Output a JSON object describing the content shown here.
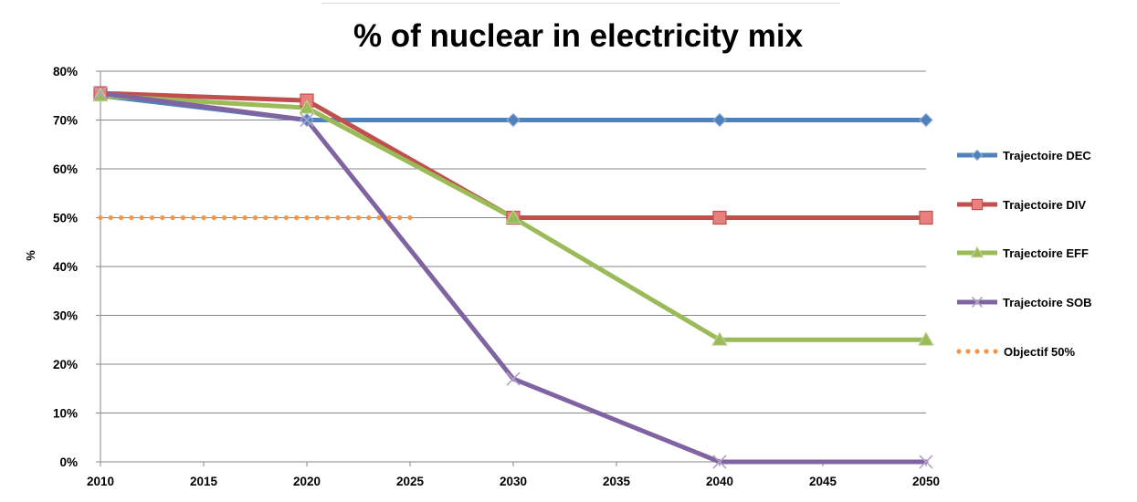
{
  "chart_data": {
    "type": "line",
    "title": "% of nuclear in electricity mix",
    "xlabel": "",
    "ylabel": "%",
    "xlim": [
      2010,
      2050
    ],
    "ylim": [
      0,
      80
    ],
    "x_ticks": [
      "2010",
      "2015",
      "2020",
      "2025",
      "2030",
      "2035",
      "2040",
      "2045",
      "2050"
    ],
    "y_ticks": [
      "0%",
      "10%",
      "20%",
      "30%",
      "40%",
      "50%",
      "60%",
      "70%",
      "80%"
    ],
    "grid": "horizontal",
    "legend_position": "right",
    "series": [
      {
        "name": "Trajectoire DEC",
        "color": "#4f81bd",
        "marker": "diamond",
        "line": "solid",
        "x": [
          2010,
          2020,
          2030,
          2040,
          2050
        ],
        "values": [
          75,
          70,
          70,
          70,
          70
        ]
      },
      {
        "name": "Trajectoire DIV",
        "color": "#c0504d",
        "marker": "square",
        "line": "solid",
        "x": [
          2010,
          2020,
          2030,
          2040,
          2050
        ],
        "values": [
          75.5,
          74,
          50,
          50,
          50
        ]
      },
      {
        "name": "Trajectoire EFF",
        "color": "#9bbb59",
        "marker": "triangle",
        "line": "solid",
        "x": [
          2010,
          2020,
          2030,
          2040,
          2050
        ],
        "values": [
          75,
          72.5,
          50,
          25,
          25
        ]
      },
      {
        "name": "Trajectoire SOB",
        "color": "#8064a2",
        "marker": "x",
        "line": "solid",
        "x": [
          2010,
          2020,
          2030,
          2040,
          2050
        ],
        "values": [
          75.5,
          70,
          17,
          0,
          0
        ]
      },
      {
        "name": "Objectif 50%",
        "color": "#f79646",
        "marker": "none",
        "line": "dotted",
        "x": [
          2010,
          2025
        ],
        "values": [
          50,
          50
        ]
      }
    ]
  }
}
